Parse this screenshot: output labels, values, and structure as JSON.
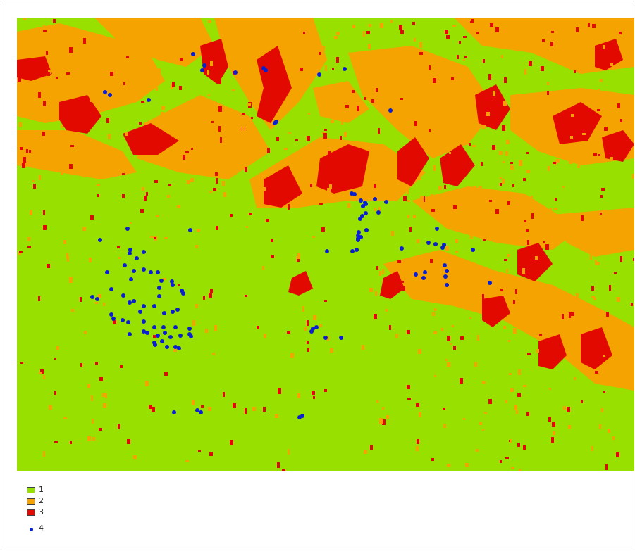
{
  "map": {
    "colors": {
      "class_1": "#97e000",
      "class_2": "#f5a300",
      "class_3": "#e20a00",
      "points": "#0a1fd0"
    }
  },
  "legend": {
    "items": [
      {
        "label": "1",
        "kind": "fill",
        "color": "#97e000"
      },
      {
        "label": "2",
        "kind": "fill",
        "color": "#f5a300"
      },
      {
        "label": "3",
        "kind": "fill",
        "color": "#e20a00"
      },
      {
        "label": "4",
        "kind": "point",
        "color": "#0a1fd0"
      }
    ]
  }
}
